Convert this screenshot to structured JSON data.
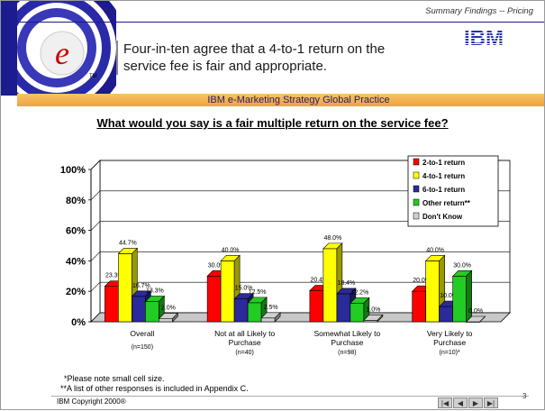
{
  "header": {
    "section": "Summary Findings -- Pricing",
    "brand": "IBM",
    "headline": "Four-in-ten agree that a 4-to-1 return on the service fee is fair and appropriate.",
    "band": "IBM e-Marketing Strategy Global Practice",
    "logo_tm": "TM"
  },
  "question": "What would you say is a fair multiple return on the service fee?",
  "chart_data": {
    "type": "bar",
    "categories": [
      "Overall",
      "Not at all Likely to Purchase",
      "Somewhat Likely to Purchase",
      "Very Likely to Purchase"
    ],
    "category_lines": [
      [
        "Overall"
      ],
      [
        "Not at all Likely to",
        "Purchase"
      ],
      [
        "Somewhat Likely to",
        "Purchase"
      ],
      [
        "Very Likely to",
        "Purchase"
      ]
    ],
    "category_bases": [
      "(n=150)",
      "(n=40)",
      "(n=98)",
      "(n=10)*"
    ],
    "series": [
      {
        "name": "2-to-1 return",
        "values": [
          23.3,
          30.0,
          20.4,
          20.0
        ],
        "color": "#ff0000"
      },
      {
        "name": "4-to-1 return",
        "values": [
          44.7,
          40.0,
          48.0,
          40.0
        ],
        "color": "#ffff00"
      },
      {
        "name": "6-to-1 return",
        "values": [
          16.7,
          15.0,
          18.4,
          10.0
        ],
        "color": "#2a2a9a"
      },
      {
        "name": "Other return**",
        "values": [
          13.3,
          12.5,
          12.2,
          30.0
        ],
        "color": "#22cc22"
      },
      {
        "name": "Don't Know",
        "values": [
          2.0,
          2.5,
          1.0,
          0.0
        ],
        "color": "#d0d0d0"
      }
    ],
    "data_labels": [
      [
        "23.3%",
        "30.0%",
        "20.4%",
        "20.0%"
      ],
      [
        "44.7%",
        "40.0%",
        "48.0%",
        "40.0%"
      ],
      [
        "16.7%",
        "15.0%",
        "18.4%",
        "10.0%"
      ],
      [
        "13.3%",
        "12.5%",
        "12.2%",
        "30.0%"
      ],
      [
        "2.0%",
        "2.5%",
        "1.0%",
        "0.0%"
      ]
    ],
    "yticks": [
      "0%",
      "20%",
      "40%",
      "60%",
      "80%",
      "100%"
    ],
    "ylim": [
      0,
      100
    ],
    "legend": "top-right",
    "grid": true
  },
  "footnotes": {
    "note1": "*Please note small cell size.",
    "note2": "**A list of other responses is included in Appendix C."
  },
  "footer": {
    "copyright": "IBM Copyright 2000®",
    "page": "3"
  }
}
